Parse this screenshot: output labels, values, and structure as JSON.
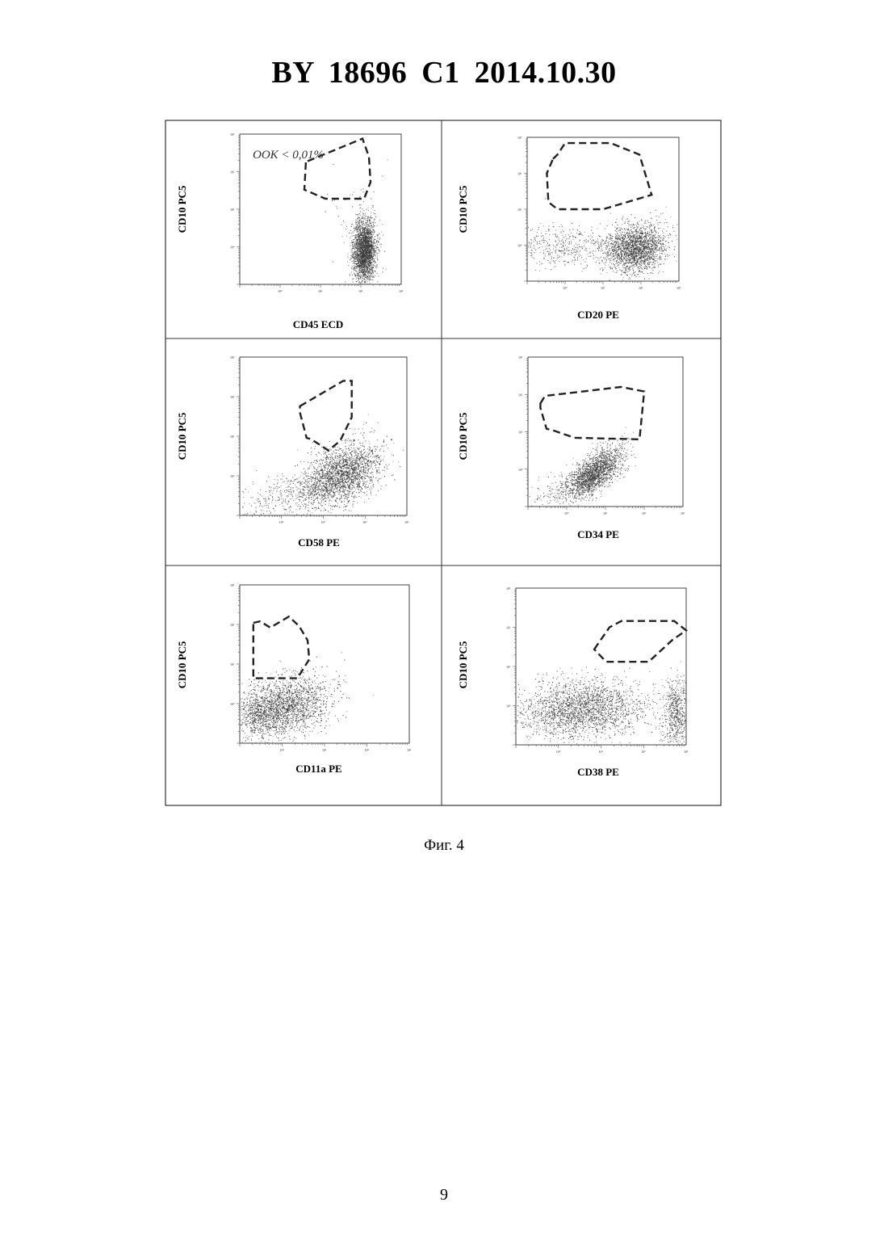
{
  "header": {
    "title": "BY  18696  C1  2014.10.30"
  },
  "figure": {
    "caption": "Фиг. 4",
    "panels": [
      {
        "ylabel": "CD10 PC5",
        "xlabel": "CD45 ECD",
        "annotation": "OOK < 0,01%",
        "yticks": [
          "10⁰",
          "10¹",
          "10²",
          "10³"
        ],
        "xticks": [
          "10⁰",
          "10¹",
          "10²",
          "10³"
        ]
      },
      {
        "ylabel": "CD10 PC5",
        "xlabel": "CD20 PE",
        "annotation": "",
        "yticks": [
          "10⁰",
          "10¹",
          "10²",
          "10³"
        ],
        "xticks": [
          "10⁰",
          "10¹",
          "10²",
          "10³"
        ]
      },
      {
        "ylabel": "CD10 PC5",
        "xlabel": "CD58 PE",
        "annotation": "",
        "yticks": [
          "10⁰",
          "10¹",
          "10²",
          "10³"
        ],
        "xticks": [
          "10⁰",
          "10¹",
          "10²",
          "10³"
        ]
      },
      {
        "ylabel": "CD10 PC5",
        "xlabel": "CD34 PE",
        "annotation": "",
        "yticks": [
          "10⁰",
          "10¹",
          "10²",
          "10³"
        ],
        "xticks": [
          "10⁰",
          "10¹",
          "10²",
          "10³"
        ]
      },
      {
        "ylabel": "CD10 PC5",
        "xlabel": "CD11a PE",
        "annotation": "",
        "yticks": [
          "10⁰",
          "10¹",
          "10²",
          "10³"
        ],
        "xticks": [
          "10⁰",
          "10¹",
          "10²",
          "10³"
        ]
      },
      {
        "ylabel": "CD10 PC5",
        "xlabel": "CD38 PE",
        "annotation": "",
        "yticks": [
          "10⁰",
          "10¹",
          "10²",
          "10³"
        ],
        "xticks": [
          "10⁰",
          "10¹",
          "10²",
          "10³"
        ]
      }
    ]
  },
  "page_number": "9"
}
